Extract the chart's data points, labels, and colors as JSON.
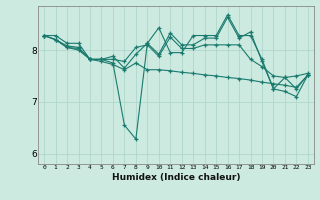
{
  "title": "",
  "xlabel": "Humidex (Indice chaleur)",
  "ylabel": "",
  "bg_color": "#cceae0",
  "line_color": "#1a7a6e",
  "grid_color": "#b0d8cc",
  "ylim": [
    5.8,
    8.85
  ],
  "xlim": [
    -0.5,
    23.5
  ],
  "yticks": [
    6,
    7,
    8
  ],
  "xtick_labels": [
    "0",
    "1",
    "2",
    "3",
    "4",
    "5",
    "6",
    "7",
    "8",
    "9",
    "10",
    "11",
    "12",
    "13",
    "14",
    "15",
    "16",
    "17",
    "18",
    "19",
    "20",
    "21",
    "22",
    "23"
  ],
  "series": [
    [
      8.28,
      8.28,
      8.13,
      8.13,
      7.82,
      7.82,
      7.75,
      6.55,
      6.28,
      8.13,
      8.43,
      7.95,
      7.95,
      8.28,
      8.28,
      8.28,
      8.68,
      8.28,
      8.28,
      7.82,
      7.25,
      7.2,
      7.1,
      7.52
    ],
    [
      8.28,
      8.2,
      8.08,
      8.05,
      7.82,
      7.82,
      7.88,
      7.65,
      7.92,
      8.13,
      7.92,
      8.33,
      8.1,
      8.1,
      8.23,
      8.23,
      8.63,
      8.23,
      8.35,
      7.78,
      7.25,
      7.47,
      7.25,
      7.52
    ],
    [
      8.28,
      8.2,
      8.05,
      8.03,
      7.82,
      7.82,
      7.82,
      7.78,
      8.05,
      8.1,
      7.88,
      8.25,
      8.03,
      8.03,
      8.1,
      8.1,
      8.1,
      8.1,
      7.82,
      7.68,
      7.5,
      7.47,
      7.5,
      7.55
    ],
    [
      8.28,
      8.2,
      8.05,
      8.0,
      7.82,
      7.78,
      7.72,
      7.62,
      7.75,
      7.62,
      7.62,
      7.6,
      7.57,
      7.55,
      7.52,
      7.5,
      7.47,
      7.45,
      7.42,
      7.38,
      7.35,
      7.32,
      7.28,
      7.52
    ]
  ]
}
